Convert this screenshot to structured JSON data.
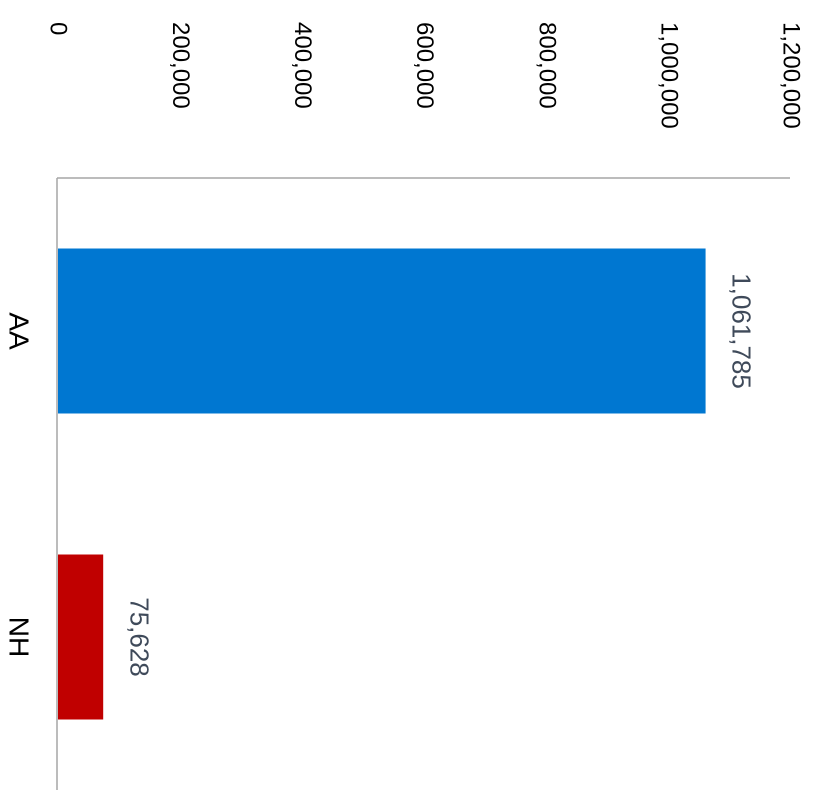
{
  "chart_data": {
    "type": "bar",
    "orientation": "horizontal",
    "categories": [
      "AA",
      "NH"
    ],
    "values": [
      1061785,
      75628
    ],
    "value_labels": [
      "1,061,785",
      "75,628"
    ],
    "colors": [
      "#0077d1",
      "#c00000"
    ],
    "xlim": [
      0,
      1200000
    ],
    "ticks": [
      0,
      200000,
      400000,
      600000,
      800000,
      1000000,
      1200000
    ],
    "tick_labels": [
      "0",
      "200,000",
      "400,000",
      "600,000",
      "800,000",
      "1,000,000",
      "1,200,000"
    ],
    "title": "",
    "xlabel": "",
    "ylabel": "",
    "grid": false,
    "legend": "none"
  }
}
